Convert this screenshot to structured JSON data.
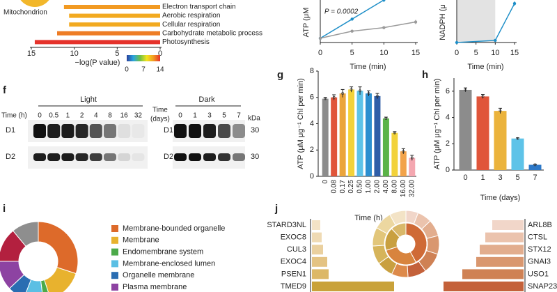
{
  "go_enrichment": {
    "type": "bar_h",
    "pie_label": "Mitochondrion",
    "categories": [
      "Electron transport chain",
      "Aerobic respiration",
      "Cellular respiration",
      "Carbohydrate metabolic process",
      "Photosynthesis"
    ],
    "values": [
      11.2,
      10.6,
      10.6,
      12.0,
      14.6
    ],
    "xlim": [
      15,
      0
    ],
    "xticks": [
      15,
      10,
      5,
      0
    ],
    "xlabel": "−log(P value)",
    "colorbar": {
      "ticks": [
        0,
        7,
        14
      ],
      "colors": [
        "#2b3f9b",
        "#2aa6df",
        "#6fbf45",
        "#f3e41e",
        "#f29a22",
        "#e5322b"
      ]
    }
  },
  "atp_light": {
    "type": "line",
    "ylabel": "ATP (μM",
    "xlabel": "Time (min)",
    "annotation": "P = 0.0002",
    "xlim": [
      0,
      15
    ],
    "xticks": [
      0,
      5,
      10,
      15
    ],
    "ylim": [
      0,
      60
    ],
    "series": [
      {
        "color": "#1f8fc8",
        "x": [
          0,
          5,
          10
        ],
        "values": [
          6,
          33,
          60
        ],
        "errors": [
          1,
          2,
          3
        ]
      },
      {
        "color": "#9a9a9a",
        "x": [
          0,
          5,
          10,
          15
        ],
        "values": [
          6,
          16,
          21,
          29
        ],
        "errors": [
          1,
          2,
          2,
          3
        ]
      }
    ]
  },
  "nadph": {
    "type": "line",
    "ylabel": "NADPH (μ",
    "xlabel": "Time (min)",
    "xlim": [
      0,
      15
    ],
    "xticks": [
      0,
      5,
      10,
      15
    ],
    "ylim": [
      0,
      60
    ],
    "shade": [
      0,
      10
    ],
    "series": [
      {
        "color": "#1f8fc8",
        "x": [
          0,
          10,
          15
        ],
        "values": [
          0,
          3,
          55
        ],
        "errors": [
          0,
          1,
          3
        ]
      }
    ]
  },
  "blot": {
    "panel": "f",
    "light_label": "Light",
    "dark_label": "Dark",
    "light_time_label": "Time (h)",
    "light_times": [
      "0",
      "0.5",
      "1",
      "2",
      "4",
      "8",
      "16",
      "32"
    ],
    "dark_time_label": [
      "Time",
      "(days)"
    ],
    "dark_times": [
      "0",
      "1",
      "3",
      "5",
      "7"
    ],
    "unit": "kDa",
    "proteins": [
      "D1",
      "D2"
    ],
    "sizes": [
      "30",
      "30"
    ]
  },
  "atp_hours": {
    "panel": "g",
    "type": "bar",
    "ylabel": "ATP (μM μg⁻¹ Chl per min)",
    "xlabel": "Time (h)",
    "categories": [
      "0",
      "0.08",
      "0.17",
      "0.25",
      "0.50",
      "1.00",
      "2.00",
      "4.00",
      "8.00",
      "16.00",
      "32.00"
    ],
    "values": [
      5.9,
      6.0,
      6.3,
      6.6,
      6.5,
      6.3,
      6.1,
      4.4,
      3.3,
      1.9,
      1.4
    ],
    "errors": [
      0.1,
      0.2,
      0.3,
      0.2,
      0.3,
      0.2,
      0.2,
      0.1,
      0.1,
      0.2,
      0.2
    ],
    "colors": [
      "#8c8c8c",
      "#e0553a",
      "#eba53c",
      "#f3d23a",
      "#5ec3e8",
      "#2c8fd0",
      "#2f5ea8",
      "#5bb348",
      "#f2d23a",
      "#f2a34a",
      "#f4a7b0"
    ],
    "ylim": [
      0,
      8
    ],
    "yticks": [
      0,
      2,
      4,
      6,
      8
    ]
  },
  "atp_days": {
    "panel": "h",
    "type": "bar",
    "ylabel": "ATP (μM μg⁻¹ Chl per min)",
    "xlabel": "Time (days)",
    "categories": [
      "0",
      "1",
      "3",
      "5",
      "7"
    ],
    "values": [
      6.1,
      5.6,
      4.5,
      2.4,
      0.4
    ],
    "errors": [
      0.15,
      0.15,
      0.2,
      0.05,
      0.05
    ],
    "colors": [
      "#8c8c8c",
      "#e0553a",
      "#ebb33c",
      "#5ec3e8",
      "#2c78c8"
    ],
    "ylim": [
      0,
      7
    ],
    "yticks": [
      0,
      2,
      4,
      6
    ]
  },
  "localization": {
    "panel": "i",
    "type": "donut",
    "categories": [
      "Membrane-bounded organelle",
      "Membrane",
      "Endomembrane system",
      "Membrane-enclosed lumen",
      "Organelle membrane",
      "Plasma membrane",
      null,
      null
    ],
    "values": [
      30,
      15,
      3,
      8,
      7,
      12,
      14,
      11
    ],
    "colors": [
      "#dd6a2a",
      "#e8b22e",
      "#4caa4a",
      "#5bbfe4",
      "#2a6db2",
      "#8d43a2",
      "#b3203f",
      "#8e8e8e"
    ]
  },
  "interactors": {
    "panel": "j",
    "type": "bar_h_pair",
    "left": {
      "categories": [
        "STARD3NL",
        "EXOC8",
        "CUL3",
        "EXOC4",
        "PSEN1",
        "TMED9"
      ],
      "values": [
        12,
        14,
        16,
        22,
        24,
        118
      ],
      "colors": [
        "#f3e3c6",
        "#efdab4",
        "#ead09f",
        "#e4c383",
        "#dcb867",
        "#c9a23a"
      ]
    },
    "right": {
      "categories": [
        "ARL8B",
        "CTSL",
        "STX12",
        "GNAI3",
        "USO1",
        "SNAP23"
      ],
      "values": [
        45,
        55,
        63,
        68,
        88,
        115
      ],
      "colors": [
        "#f1d6c9",
        "#ebc3ad",
        "#e2ad8e",
        "#d9976f",
        "#cf8154",
        "#c4613a"
      ]
    },
    "sunburst": {
      "inner": {
        "values": [
          42,
          28,
          18,
          12
        ],
        "colors": [
          "#cf6a36",
          "#d8843e",
          "#c9a040",
          "#d9b86a"
        ]
      },
      "outer": {
        "values": [
          6,
          7,
          8,
          9,
          10,
          9,
          8,
          8,
          9,
          9,
          9,
          8
        ],
        "colors": [
          "#f1d6c9",
          "#ebc3ad",
          "#e2ad8e",
          "#d9976f",
          "#cf8154",
          "#c4613a",
          "#dd8a4a",
          "#c9a040",
          "#d6b45a",
          "#e2c67a",
          "#ecd7a0",
          "#f3e3c6"
        ]
      }
    }
  }
}
